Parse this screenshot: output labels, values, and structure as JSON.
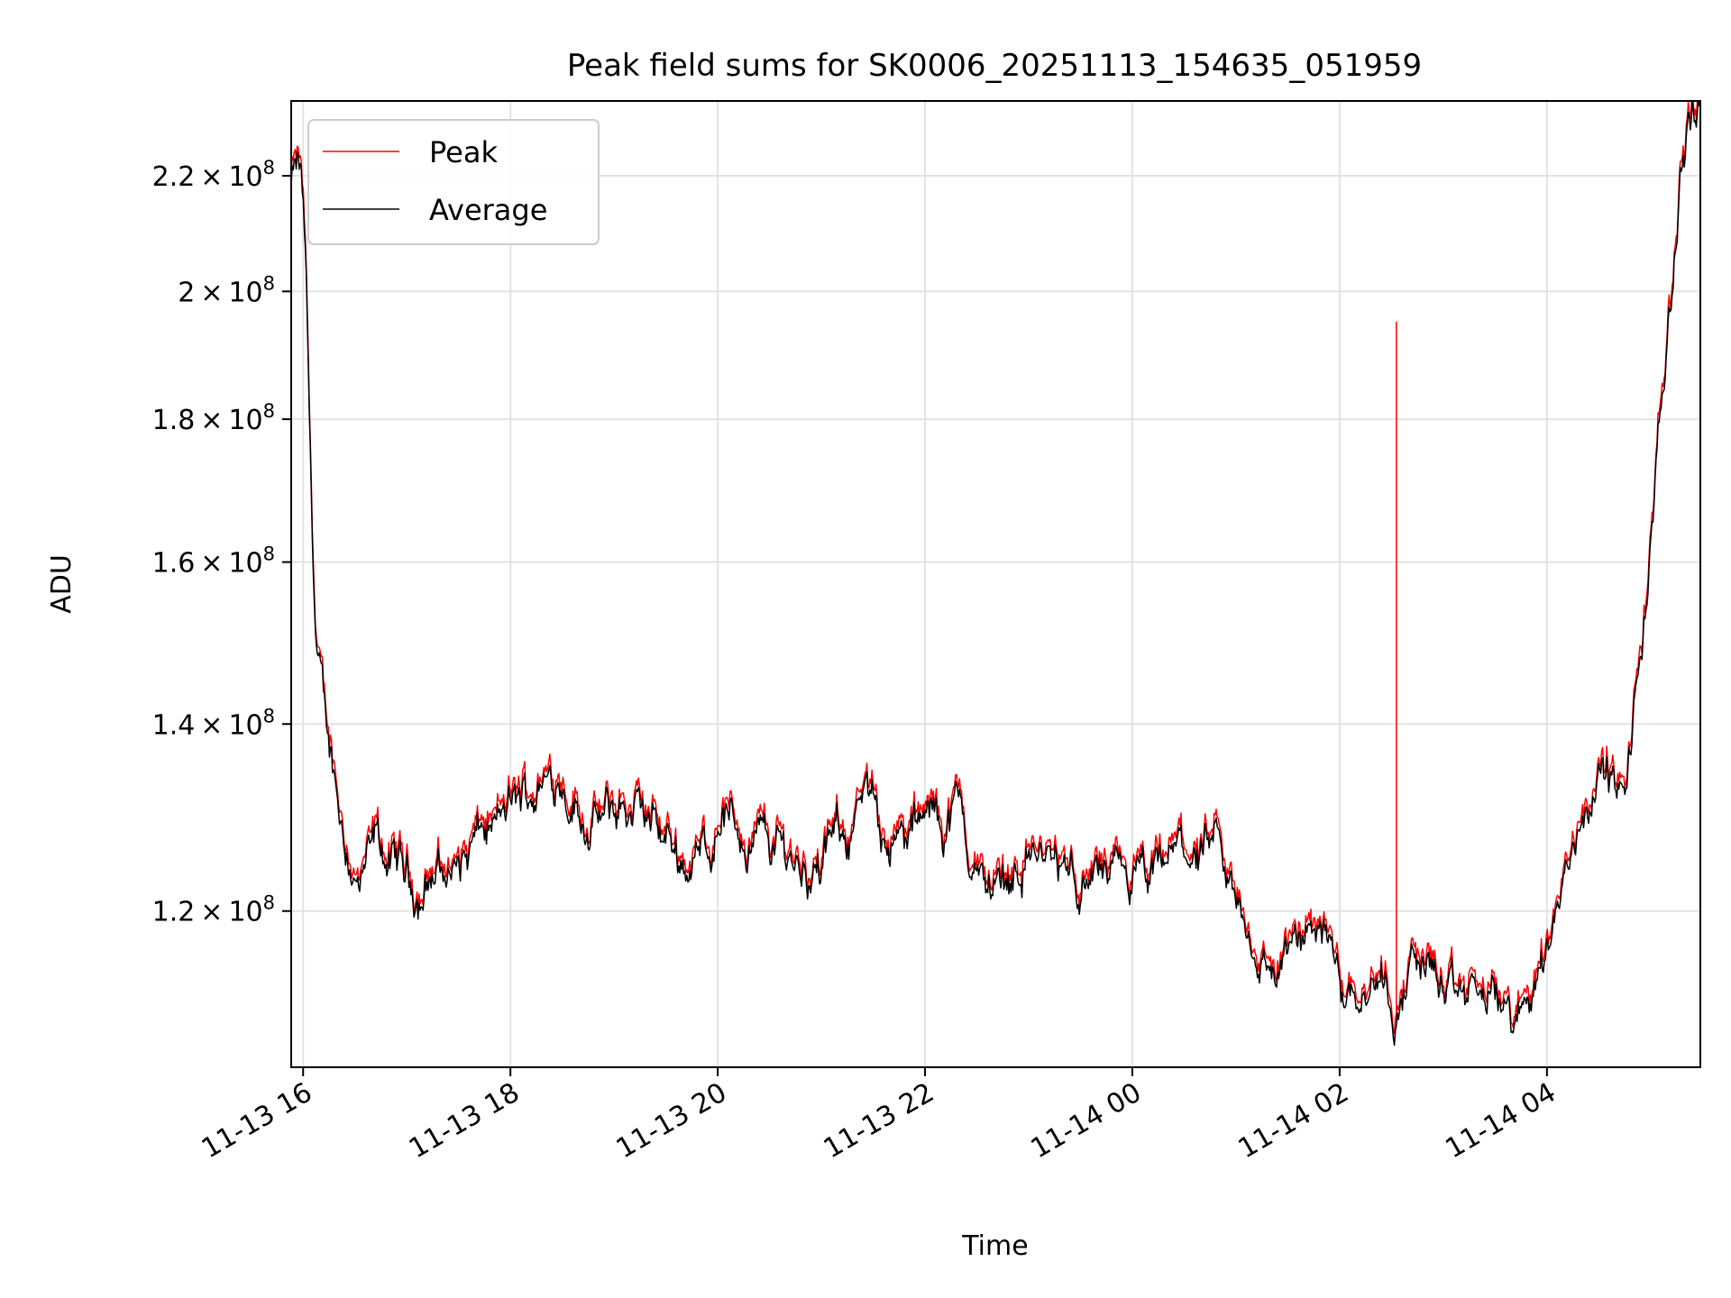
{
  "chart_data": {
    "type": "line",
    "title": "Peak field sums for SK0006_20251113_154635_051959",
    "xlabel": "Time",
    "ylabel": "ADU",
    "yscale": "log",
    "ylim": [
      105500000,
      234000000
    ],
    "x_range_hours": [
      -0.115,
      13.48
    ],
    "grid": true,
    "legend_position": "upper-left",
    "x_ticks": [
      {
        "hour": 0,
        "label": "11-13 16"
      },
      {
        "hour": 2,
        "label": "11-13 18"
      },
      {
        "hour": 4,
        "label": "11-13 20"
      },
      {
        "hour": 6,
        "label": "11-13 22"
      },
      {
        "hour": 8,
        "label": "11-14 00"
      },
      {
        "hour": 10,
        "label": "11-14 02"
      },
      {
        "hour": 12,
        "label": "11-14 04"
      }
    ],
    "y_ticks": [
      {
        "value": 120000000,
        "mantissa": "1.2",
        "exp": "8"
      },
      {
        "value": 140000000,
        "mantissa": "1.4",
        "exp": "8"
      },
      {
        "value": 160000000,
        "mantissa": "1.6",
        "exp": "8"
      },
      {
        "value": 180000000,
        "mantissa": "1.8",
        "exp": "8"
      },
      {
        "value": 200000000,
        "mantissa": "2",
        "exp": "8"
      },
      {
        "value": 220000000,
        "mantissa": "2.2",
        "exp": "8"
      }
    ],
    "series": [
      {
        "name": "Peak",
        "color": "#ff0000",
        "spike": {
          "hour": 10.55,
          "value": 195000000
        }
      },
      {
        "name": "Average",
        "color": "#000000"
      }
    ],
    "anchors": [
      [
        -0.115,
        218000000
      ],
      [
        -0.06,
        220500000
      ],
      [
        -0.02,
        219000000
      ],
      [
        0.02,
        205000000
      ],
      [
        0.07,
        172000000
      ],
      [
        0.12,
        150000000
      ],
      [
        0.2,
        140000000
      ],
      [
        0.3,
        134500000
      ],
      [
        0.4,
        128000000
      ],
      [
        0.55,
        121500000
      ],
      [
        0.7,
        126000000
      ],
      [
        0.9,
        124000000
      ],
      [
        1.1,
        122000000
      ],
      [
        1.3,
        124000000
      ],
      [
        1.5,
        124500000
      ],
      [
        1.7,
        127000000
      ],
      [
        1.9,
        129000000
      ],
      [
        2.1,
        131000000
      ],
      [
        2.3,
        133500000
      ],
      [
        2.5,
        134500000
      ],
      [
        2.7,
        130000000
      ],
      [
        2.9,
        129000000
      ],
      [
        3.1,
        130500000
      ],
      [
        3.3,
        129000000
      ],
      [
        3.5,
        128000000
      ],
      [
        3.7,
        125000000
      ],
      [
        3.9,
        126000000
      ],
      [
        4.05,
        131000000
      ],
      [
        4.2,
        128000000
      ],
      [
        4.4,
        127500000
      ],
      [
        4.6,
        127000000
      ],
      [
        4.8,
        125000000
      ],
      [
        5.0,
        124000000
      ],
      [
        5.2,
        128000000
      ],
      [
        5.4,
        130500000
      ],
      [
        5.6,
        129000000
      ],
      [
        5.8,
        127000000
      ],
      [
        6.0,
        128500000
      ],
      [
        6.2,
        129500000
      ],
      [
        6.35,
        131000000
      ],
      [
        6.45,
        124000000
      ],
      [
        6.6,
        122500000
      ],
      [
        6.8,
        123500000
      ],
      [
        7.0,
        126500000
      ],
      [
        7.2,
        124500000
      ],
      [
        7.4,
        122500000
      ],
      [
        7.6,
        124000000
      ],
      [
        7.8,
        122000000
      ],
      [
        8.0,
        123000000
      ],
      [
        8.2,
        122000000
      ],
      [
        8.4,
        125500000
      ],
      [
        8.6,
        126000000
      ],
      [
        8.8,
        125000000
      ],
      [
        9.0,
        120500000
      ],
      [
        9.2,
        115500000
      ],
      [
        9.4,
        114500000
      ],
      [
        9.6,
        116000000
      ],
      [
        9.75,
        117500000
      ],
      [
        9.85,
        119500000
      ],
      [
        10.0,
        113000000
      ],
      [
        10.2,
        113500000
      ],
      [
        10.4,
        114500000
      ],
      [
        10.55,
        111000000
      ],
      [
        10.7,
        115000000
      ],
      [
        10.9,
        114500000
      ],
      [
        11.1,
        110500000
      ],
      [
        11.3,
        112000000
      ],
      [
        11.5,
        111500000
      ],
      [
        11.7,
        109500000
      ],
      [
        11.85,
        112000000
      ],
      [
        12.0,
        116500000
      ],
      [
        12.15,
        122500000
      ],
      [
        12.3,
        128500000
      ],
      [
        12.45,
        134000000
      ],
      [
        12.6,
        134500000
      ],
      [
        12.75,
        130000000
      ],
      [
        12.8,
        136000000
      ],
      [
        12.88,
        146000000
      ],
      [
        12.96,
        155000000
      ],
      [
        13.04,
        168000000
      ],
      [
        13.12,
        183000000
      ],
      [
        13.2,
        200000000
      ],
      [
        13.28,
        218000000
      ],
      [
        13.36,
        230000000
      ],
      [
        13.48,
        233500000
      ]
    ]
  }
}
